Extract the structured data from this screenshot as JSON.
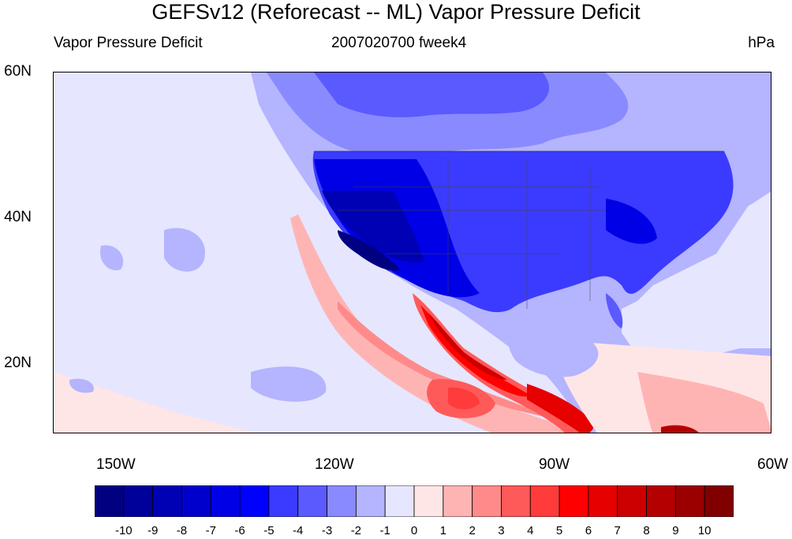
{
  "title": "GEFSv12 (Reforecast -- ML) Vapor Pressure Deficit",
  "subtitle_left": "Vapor Pressure Deficit",
  "subtitle_center": "2007020700 fweek4",
  "subtitle_right": "hPa",
  "lat_labels": [
    "60N",
    "40N",
    "20N"
  ],
  "lon_labels": [
    "150W",
    "120W",
    "90W",
    "60W"
  ],
  "colorbar": {
    "labels": [
      "-10",
      "-9",
      "-8",
      "-7",
      "-6",
      "-5",
      "-4",
      "-3",
      "-2",
      "-1",
      "0",
      "1",
      "2",
      "3",
      "4",
      "5",
      "6",
      "7",
      "8",
      "9",
      "10"
    ],
    "colors": [
      "#000080",
      "#00009a",
      "#0000b4",
      "#0000cc",
      "#0000e6",
      "#0000ff",
      "#3b3bff",
      "#5a5aff",
      "#8a8aff",
      "#b4b4ff",
      "#e6e6ff",
      "#ffe6e6",
      "#ffb4b4",
      "#ff8a8a",
      "#ff5a5a",
      "#ff3b3b",
      "#ff0000",
      "#e60000",
      "#cc0000",
      "#b40000",
      "#9a0000",
      "#800000"
    ]
  },
  "colors": {
    "ocean_neutral": "#e6e6ff",
    "land_dry_deficit": "#0000cc",
    "positive_anomaly": "#ff3b3b"
  }
}
